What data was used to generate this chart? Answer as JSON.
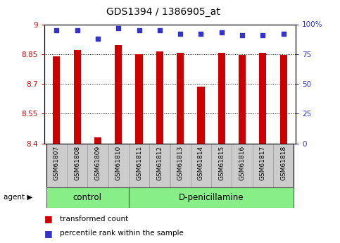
{
  "title": "GDS1394 / 1386905_at",
  "samples": [
    "GSM61807",
    "GSM61808",
    "GSM61809",
    "GSM61810",
    "GSM61811",
    "GSM61812",
    "GSM61813",
    "GSM61814",
    "GSM61815",
    "GSM61816",
    "GSM61817",
    "GSM61818"
  ],
  "transformed_counts": [
    8.84,
    8.87,
    8.43,
    8.895,
    8.85,
    8.865,
    8.855,
    8.685,
    8.855,
    8.845,
    8.855,
    8.845
  ],
  "percentile_ranks": [
    95,
    95,
    88,
    97,
    95,
    95,
    92,
    92,
    93,
    91,
    91,
    92
  ],
  "ylim_left": [
    8.4,
    9.0
  ],
  "ylim_right": [
    0,
    100
  ],
  "yticks_left": [
    8.4,
    8.55,
    8.7,
    8.85,
    9.0
  ],
  "yticks_right": [
    0,
    25,
    50,
    75,
    100
  ],
  "ytick_labels_left": [
    "8.4",
    "8.55",
    "8.7",
    "8.85",
    "9"
  ],
  "ytick_labels_right": [
    "0",
    "25",
    "50",
    "75",
    "100%"
  ],
  "bar_color": "#cc0000",
  "dot_color": "#3333cc",
  "n_control": 4,
  "n_treatment": 8,
  "control_label": "control",
  "treatment_label": "D-penicillamine",
  "agent_label": "agent",
  "legend_bar_label": "transformed count",
  "legend_dot_label": "percentile rank within the sample",
  "bar_bottom": 8.4,
  "group_bg_color": "#88ee88",
  "tick_bg_color": "#cccccc",
  "bar_width": 0.35,
  "grid_ticks": [
    8.55,
    8.7,
    8.85
  ]
}
